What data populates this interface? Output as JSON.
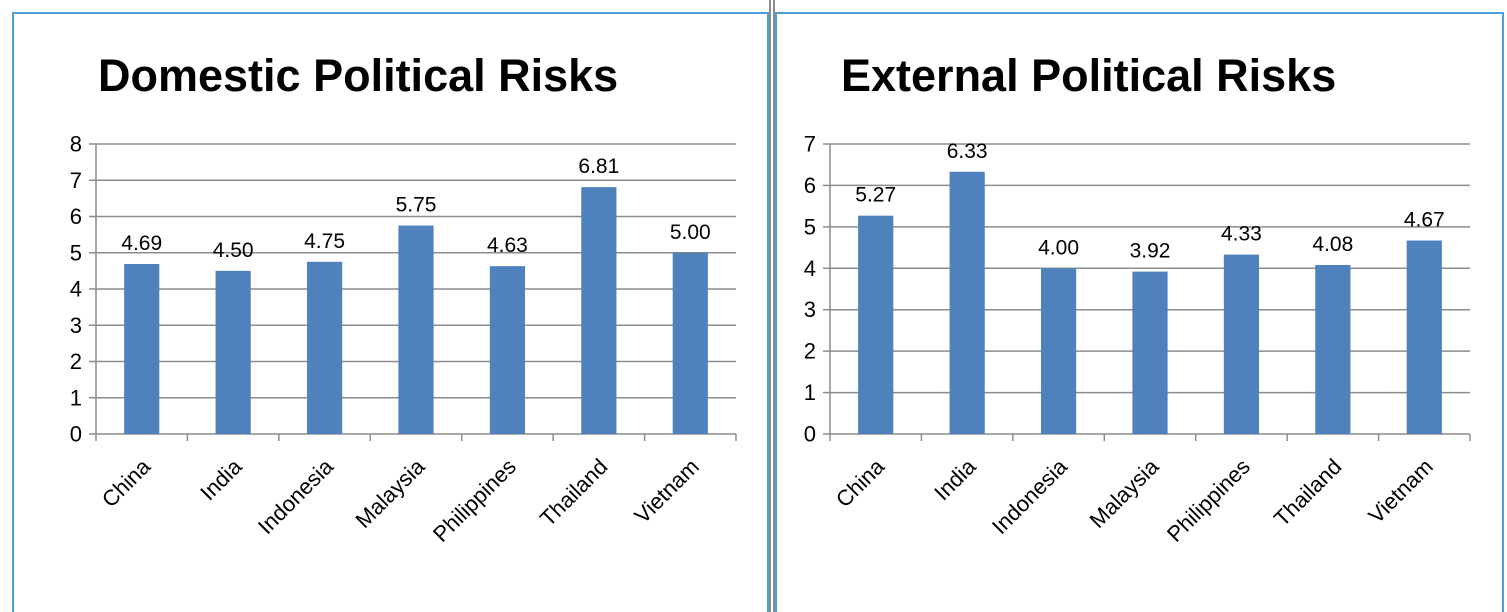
{
  "charts": {
    "left": {
      "accent": "#4f81bd"
    },
    "right": {
      "accent": "#4f81bd"
    }
  },
  "chart_data": [
    {
      "type": "bar",
      "title": "Domestic Political Risks",
      "categories": [
        "China",
        "India",
        "Indonesia",
        "Malaysia",
        "Philippines",
        "Thailand",
        "Vietnam"
      ],
      "values": [
        4.69,
        4.5,
        4.75,
        5.75,
        4.63,
        6.81,
        5.0
      ],
      "labels": [
        "4.69",
        "4.50",
        "4.75",
        "5.75",
        "4.63",
        "6.81",
        "5.00"
      ],
      "ylim": [
        0,
        8
      ],
      "yticks": [
        0,
        1,
        2,
        3,
        4,
        5,
        6,
        7,
        8
      ],
      "grid": true,
      "bar_color": "#4f81bd"
    },
    {
      "type": "bar",
      "title": "External Political Risks",
      "categories": [
        "China",
        "India",
        "Indonesia",
        "Malaysia",
        "Philippines",
        "Thailand",
        "Vietnam"
      ],
      "values": [
        5.27,
        6.33,
        4.0,
        3.92,
        4.33,
        4.08,
        4.67
      ],
      "labels": [
        "5.27",
        "6.33",
        "4.00",
        "3.92",
        "4.33",
        "4.08",
        "4.67"
      ],
      "ylim": [
        0,
        7
      ],
      "yticks": [
        0,
        1,
        2,
        3,
        4,
        5,
        6,
        7
      ],
      "grid": true,
      "bar_color": "#4f81bd"
    }
  ]
}
